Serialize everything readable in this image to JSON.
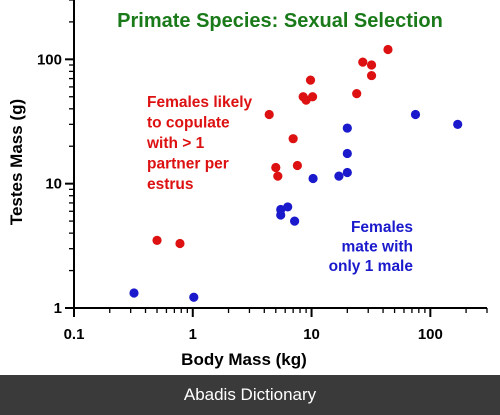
{
  "chart_data": {
    "type": "scatter",
    "title": "Primate Species:  Sexual Selection",
    "xlabel": "Body Mass (kg)",
    "ylabel": "Testes Mass (g)",
    "xscale": "log",
    "yscale": "log",
    "xlim": [
      0.1,
      300
    ],
    "ylim": [
      1,
      300
    ],
    "xticks": [
      {
        "value": 0.1,
        "label": "0.1"
      },
      {
        "value": 1,
        "label": "1"
      },
      {
        "value": 10,
        "label": "10"
      },
      {
        "value": 100,
        "label": "100"
      }
    ],
    "yticks": [
      {
        "value": 1,
        "label": "1"
      },
      {
        "value": 10,
        "label": "10"
      },
      {
        "value": 100,
        "label": "100"
      }
    ],
    "grid": false,
    "series": [
      {
        "color": "#dd1111",
        "annotation": [
          "Females likely",
          "to copulate",
          "with > 1",
          "partner per",
          "estrus"
        ],
        "points": [
          {
            "x": 0.5,
            "y": 3.5
          },
          {
            "x": 0.78,
            "y": 3.3
          },
          {
            "x": 4.4,
            "y": 36
          },
          {
            "x": 5.0,
            "y": 13.5
          },
          {
            "x": 5.2,
            "y": 11.5
          },
          {
            "x": 7.0,
            "y": 23
          },
          {
            "x": 7.6,
            "y": 14
          },
          {
            "x": 8.5,
            "y": 50
          },
          {
            "x": 9.0,
            "y": 47
          },
          {
            "x": 9.8,
            "y": 68
          },
          {
            "x": 10.2,
            "y": 50
          },
          {
            "x": 24,
            "y": 53
          },
          {
            "x": 27,
            "y": 95
          },
          {
            "x": 32,
            "y": 90
          },
          {
            "x": 32,
            "y": 74
          },
          {
            "x": 44,
            "y": 120
          }
        ]
      },
      {
        "color": "#1a1acc",
        "annotation": [
          "Females",
          "mate with",
          "only 1 male"
        ],
        "points": [
          {
            "x": 0.32,
            "y": 1.32
          },
          {
            "x": 1.02,
            "y": 1.22
          },
          {
            "x": 5.5,
            "y": 6.2
          },
          {
            "x": 5.5,
            "y": 5.6
          },
          {
            "x": 6.3,
            "y": 6.5
          },
          {
            "x": 7.2,
            "y": 5.0
          },
          {
            "x": 10.3,
            "y": 11
          },
          {
            "x": 17,
            "y": 11.5
          },
          {
            "x": 20,
            "y": 12.3
          },
          {
            "x": 20,
            "y": 17.5
          },
          {
            "x": 20,
            "y": 28
          },
          {
            "x": 75,
            "y": 36
          },
          {
            "x": 170,
            "y": 30
          }
        ]
      }
    ]
  },
  "footer": {
    "text": "Abadis Dictionary"
  }
}
